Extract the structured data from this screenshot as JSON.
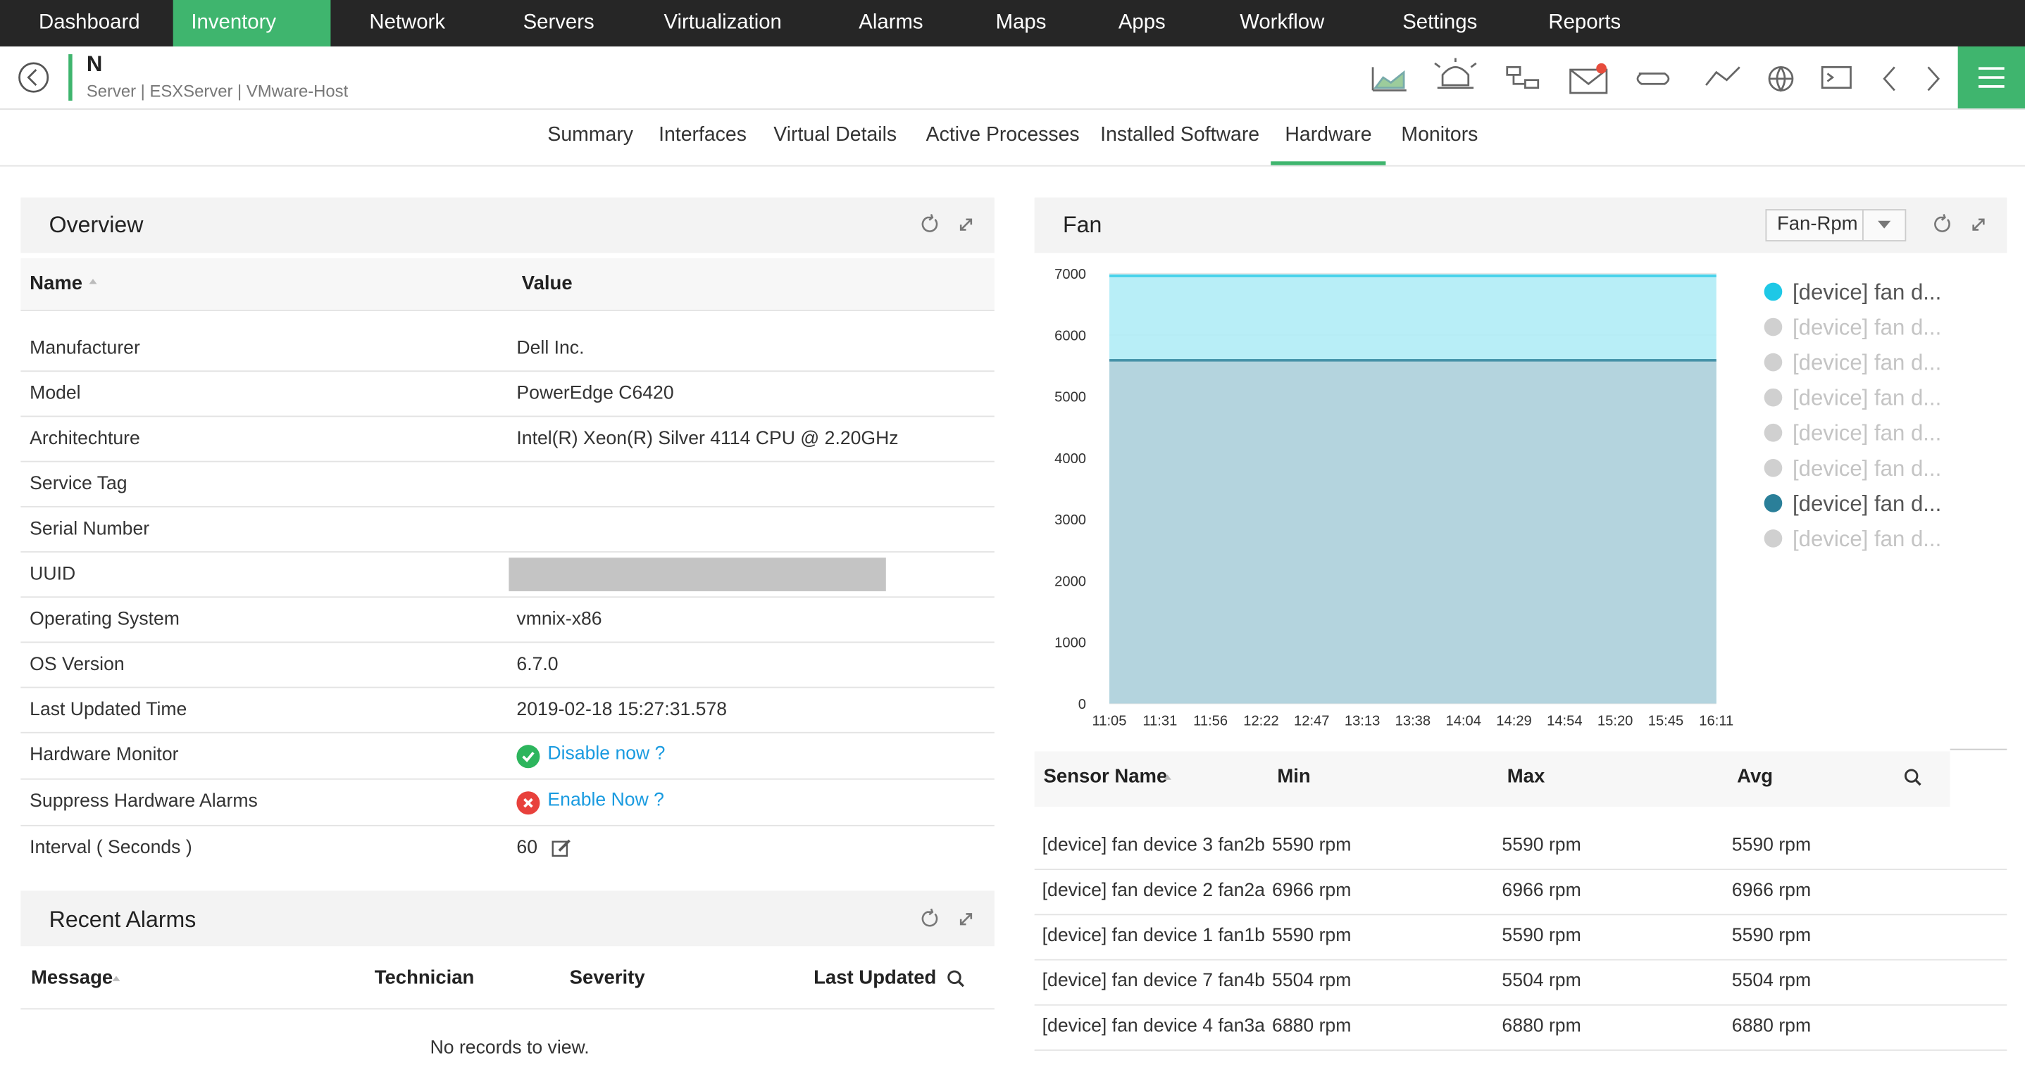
{
  "nav": {
    "items": [
      "Dashboard",
      "Inventory",
      "Network",
      "Servers",
      "Virtualization",
      "Alarms",
      "Maps",
      "Apps",
      "Workflow",
      "Settings",
      "Reports"
    ]
  },
  "header": {
    "title": "N",
    "breadcrumb": "Server | ESXServer | VMware-Host"
  },
  "tabs": [
    "Summary",
    "Interfaces",
    "Virtual Details",
    "Active Processes",
    "Installed Software",
    "Hardware",
    "Monitors"
  ],
  "overview": {
    "title": "Overview",
    "columns": [
      "Name",
      "Value"
    ],
    "rows": [
      [
        "Manufacturer",
        "Dell Inc."
      ],
      [
        "Model",
        "PowerEdge C6420"
      ],
      [
        "Architechture",
        "Intel(R) Xeon(R) Silver 4114 CPU @ 2.20GHz"
      ],
      [
        "Service Tag",
        ""
      ],
      [
        "Serial Number",
        ""
      ],
      [
        "UUID",
        ""
      ],
      [
        "Operating System",
        "vmnix-x86"
      ],
      [
        "OS Version",
        "6.7.0"
      ],
      [
        "Last Updated Time",
        "2019-02-18 15:27:31.578"
      ],
      [
        "Hardware Monitor",
        "Disable now ?"
      ],
      [
        "Suppress Hardware Alarms",
        "Enable Now ?"
      ],
      [
        "Interval  ( Seconds )",
        "60"
      ]
    ]
  },
  "recent_alarms": {
    "title": "Recent Alarms",
    "columns": [
      "Message",
      "Technician",
      "Severity",
      "Last Updated"
    ],
    "empty": "No records to view."
  },
  "fan": {
    "title": "Fan",
    "selector": "Fan-Rpm",
    "chart_data": {
      "type": "area",
      "categories": [
        "11:05",
        "11:31",
        "11:56",
        "12:22",
        "12:47",
        "13:13",
        "13:38",
        "14:04",
        "14:29",
        "14:54",
        "15:20",
        "15:45",
        "16:11"
      ],
      "ylim": [
        0,
        7000
      ],
      "yticks": [
        0,
        1000,
        2000,
        3000,
        4000,
        5000,
        6000,
        7000
      ],
      "grid": true,
      "series": [
        {
          "name": "[device] fan d...",
          "color": "#1ec8e6",
          "values": [
            6966,
            6966,
            6966,
            6966,
            6966,
            6966,
            6966,
            6966,
            6966,
            6966,
            6966,
            6966,
            6966
          ]
        },
        {
          "name": "[device] fan d...",
          "color": "#d0d0d0"
        },
        {
          "name": "[device] fan d...",
          "color": "#d0d0d0"
        },
        {
          "name": "[device] fan d...",
          "color": "#d0d0d0"
        },
        {
          "name": "[device] fan d...",
          "color": "#d0d0d0"
        },
        {
          "name": "[device] fan d...",
          "color": "#d0d0d0"
        },
        {
          "name": "[device] fan d...",
          "color": "#2a7f99",
          "values": [
            5590,
            5590,
            5590,
            5590,
            5590,
            5590,
            5590,
            5590,
            5590,
            5590,
            5590,
            5590,
            5590
          ]
        },
        {
          "name": "[device] fan d...",
          "color": "#d0d0d0"
        }
      ]
    },
    "table": {
      "columns": [
        "Sensor Name",
        "Min",
        "Max",
        "Avg"
      ],
      "rows": [
        [
          "[device] fan device 3 fan2b",
          "5590 rpm",
          "5590 rpm",
          "5590 rpm"
        ],
        [
          "[device] fan device 2 fan2a",
          "6966 rpm",
          "6966 rpm",
          "6966 rpm"
        ],
        [
          "[device] fan device 1 fan1b",
          "5590 rpm",
          "5590 rpm",
          "5590 rpm"
        ],
        [
          "[device] fan device 7 fan4b",
          "5504 rpm",
          "5504 rpm",
          "5504 rpm"
        ],
        [
          "[device] fan device 4 fan3a",
          "6880 rpm",
          "6880 rpm",
          "6880 rpm"
        ]
      ]
    }
  }
}
